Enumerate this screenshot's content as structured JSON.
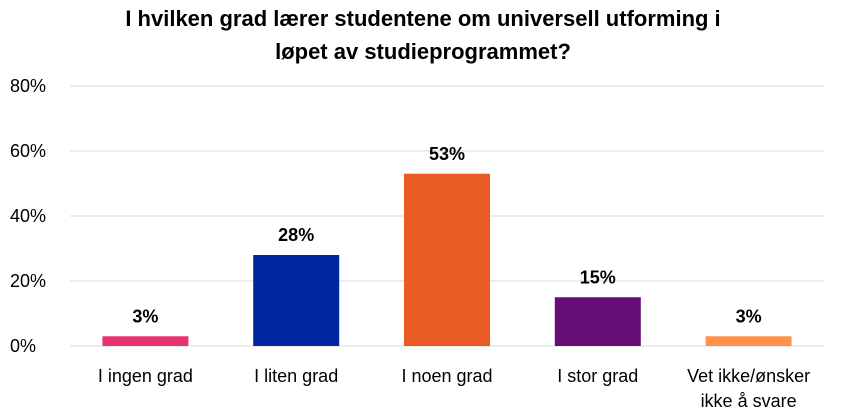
{
  "chart_data": {
    "type": "bar",
    "title_lines": [
      "I hvilken grad lærer studentene om universell utforming i",
      "løpet av studieprogrammet?"
    ],
    "categories": [
      [
        "I ingen grad"
      ],
      [
        "I liten grad"
      ],
      [
        "I noen grad"
      ],
      [
        "I stor grad"
      ],
      [
        "Vet ikke/ønsker",
        "ikke å svare"
      ]
    ],
    "values": [
      3,
      28,
      53,
      15,
      3
    ],
    "data_labels": [
      "3%",
      "28%",
      "53%",
      "15%",
      "3%"
    ],
    "colors": [
      "#e8336e",
      "#0027a0",
      "#ea5b21",
      "#650e75",
      "#ff914a"
    ],
    "ylim": [
      0,
      80
    ],
    "yticks": [
      0,
      20,
      40,
      60,
      80
    ],
    "ytick_labels": [
      "0%",
      "20%",
      "40%",
      "60%",
      "80%"
    ],
    "grid": true,
    "grid_color": "#d9d9d9",
    "xlabel": "",
    "ylabel": ""
  }
}
